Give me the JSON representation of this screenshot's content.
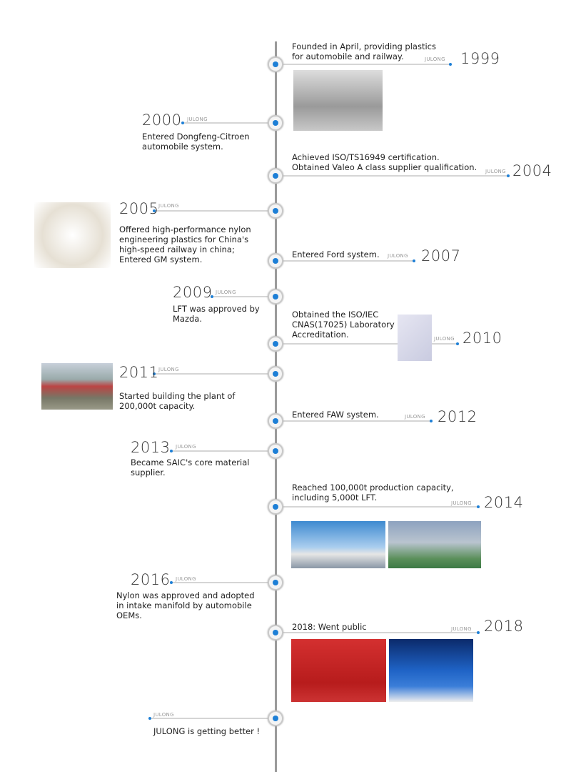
{
  "brand": "JULONG",
  "accent_color": "#1d7fd6",
  "timeline": [
    {
      "year": "1999",
      "side": "right",
      "text": "Founded in April, providing plastics\nfor automobile and railway.",
      "photos": [
        "factory-site-photo"
      ]
    },
    {
      "year": "2000",
      "side": "left",
      "text": "Entered Dongfeng-Citroen\nautomobile system."
    },
    {
      "year": "2004",
      "side": "right",
      "text": "Achieved ISO/TS16949 certification.\nObtained Valeo A class supplier qualification."
    },
    {
      "year": "2005",
      "side": "left",
      "text": "Offered high-performance nylon\nengineering plastics for China's\nhigh-speed railway in china;\nEntered GM system.",
      "photos": [
        "nylon-products-photo"
      ]
    },
    {
      "year": "2007",
      "side": "right",
      "text": "Entered Ford system."
    },
    {
      "year": "2009",
      "side": "left",
      "text": "LFT was approved by\nMazda."
    },
    {
      "year": "2010",
      "side": "right",
      "text": "Obtained the ISO/IEC\nCNAS(17025) Laboratory\nAccreditation.",
      "photos": [
        "certificate-photo"
      ]
    },
    {
      "year": "2011",
      "side": "left",
      "text": "Started building the plant of\n200,000t capacity.",
      "photos": [
        "groundbreaking-photo"
      ]
    },
    {
      "year": "2012",
      "side": "right",
      "text": "Entered FAW system."
    },
    {
      "year": "2013",
      "side": "left",
      "text": "Became SAIC's core material\nsupplier."
    },
    {
      "year": "2014",
      "side": "right",
      "text": "Reached 100,000t production capacity,\nincluding 5,000t LFT.",
      "photos": [
        "plant-exterior-photo",
        "plant-interior-photo"
      ]
    },
    {
      "year": "2016",
      "side": "left",
      "text": "Nylon was approved and adopted\nin intake manifold by automobile\nOEMs."
    },
    {
      "year": "2018",
      "side": "right",
      "text": "2018:  Went public",
      "photos": [
        "bell-ringing-photo",
        "listing-ceremony-photo"
      ]
    },
    {
      "year": "",
      "side": "left",
      "text": "JULONG is getting better !"
    }
  ]
}
